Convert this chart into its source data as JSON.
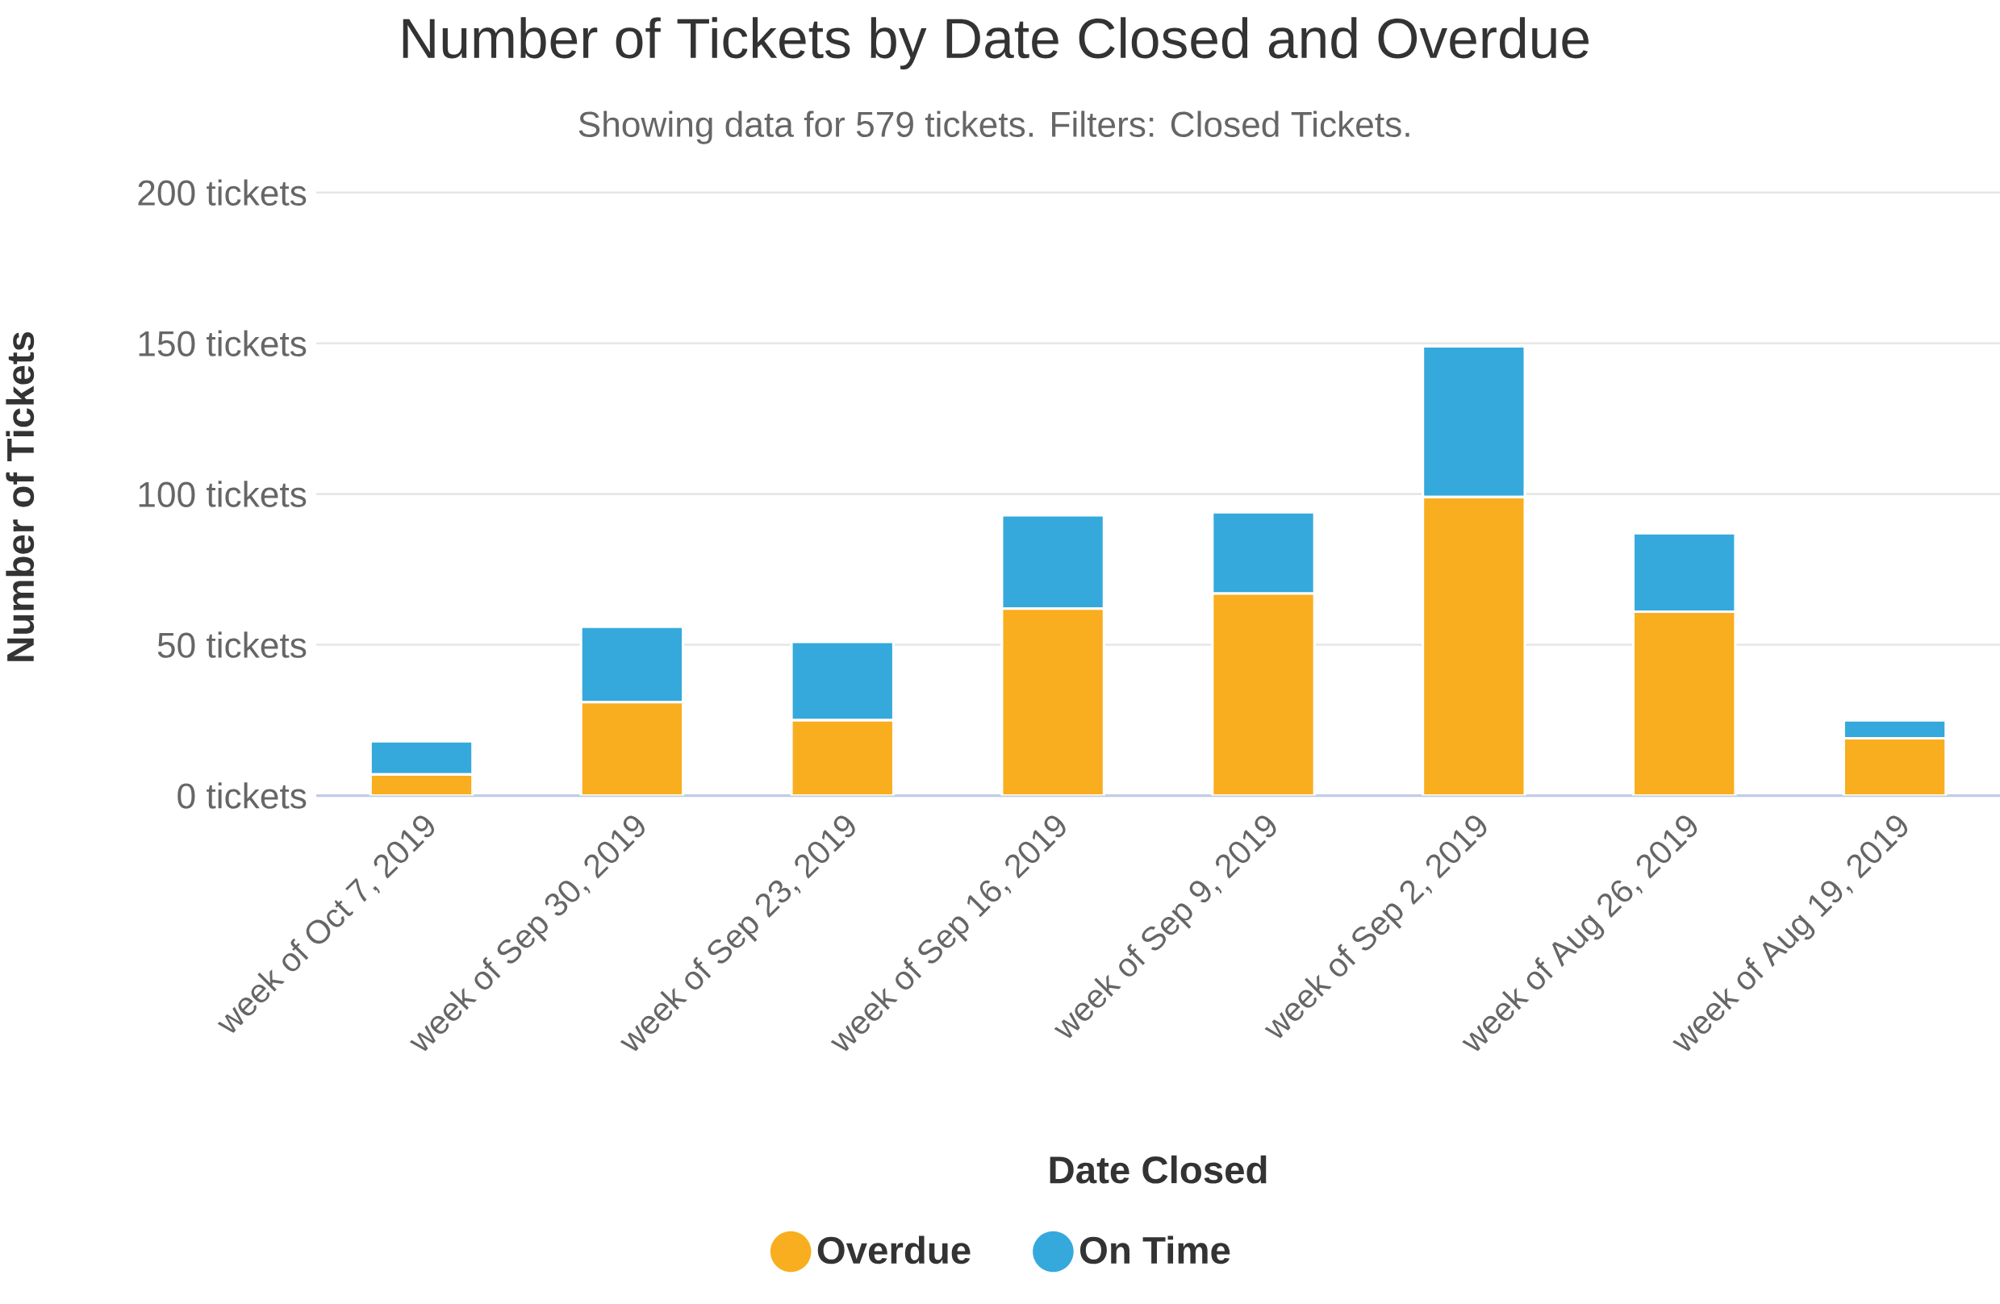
{
  "chart_data": {
    "type": "bar",
    "title": "Number of Tickets by Date Closed and Overdue",
    "subtitle": "Showing data for 579 tickets. Filters: Closed Tickets.",
    "xlabel": "Date Closed",
    "ylabel": "Number of Tickets",
    "categories": [
      "week of Oct 7, 2019",
      "week of Sep 30, 2019",
      "week of Sep 23, 2019",
      "week of Sep 16, 2019",
      "week of Sep 9, 2019",
      "week of Sep 2, 2019",
      "week of Aug 26, 2019",
      "week of Aug 19, 2019"
    ],
    "series": [
      {
        "name": "Overdue",
        "color": "#f9ae1f",
        "values": [
          7,
          31,
          25,
          62,
          67,
          99,
          61,
          19
        ]
      },
      {
        "name": "On Time",
        "color": "#35a9dc",
        "values": [
          11,
          25,
          26,
          31,
          27,
          50,
          26,
          6
        ]
      }
    ],
    "stacked": true,
    "ylim": [
      0,
      200
    ],
    "yticks": [
      {
        "value": 0,
        "label": "0 tickets"
      },
      {
        "value": 50,
        "label": "50 tickets"
      },
      {
        "value": 100,
        "label": "100 tickets"
      },
      {
        "value": 150,
        "label": "150 tickets"
      },
      {
        "value": 200,
        "label": "200 tickets"
      }
    ],
    "grid": "y",
    "legend": "bottom"
  }
}
